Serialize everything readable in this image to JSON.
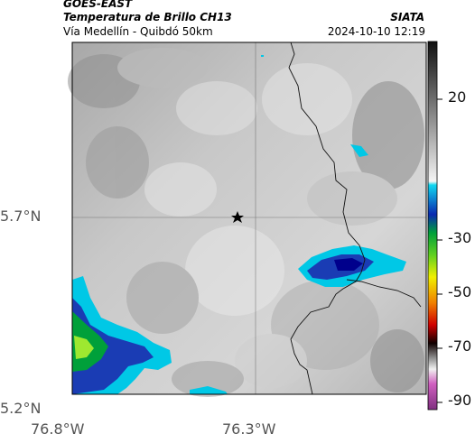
{
  "header": {
    "satellite": "GOES-EAST",
    "product": "Temperatura de Brillo CH13",
    "route": "Vía Medellín - Quibdó 50km",
    "agency": "SIATA",
    "timestamp": "2024-10-10 12:19"
  },
  "map": {
    "lat_labels": [
      "5.7°N",
      "5.2°N"
    ],
    "lon_labels": [
      "76.8°W",
      "76.3°W"
    ],
    "marker": "star-icon"
  },
  "colorbar": {
    "ticks": [
      "20",
      "-30",
      "-50",
      "-70",
      "-90"
    ]
  },
  "colors": {
    "cold_core": "#00008c",
    "deep_blue": "#1a3cb4",
    "cyan": "#00c8e6",
    "green": "#3cc83c",
    "yellow": "#e6e600"
  }
}
